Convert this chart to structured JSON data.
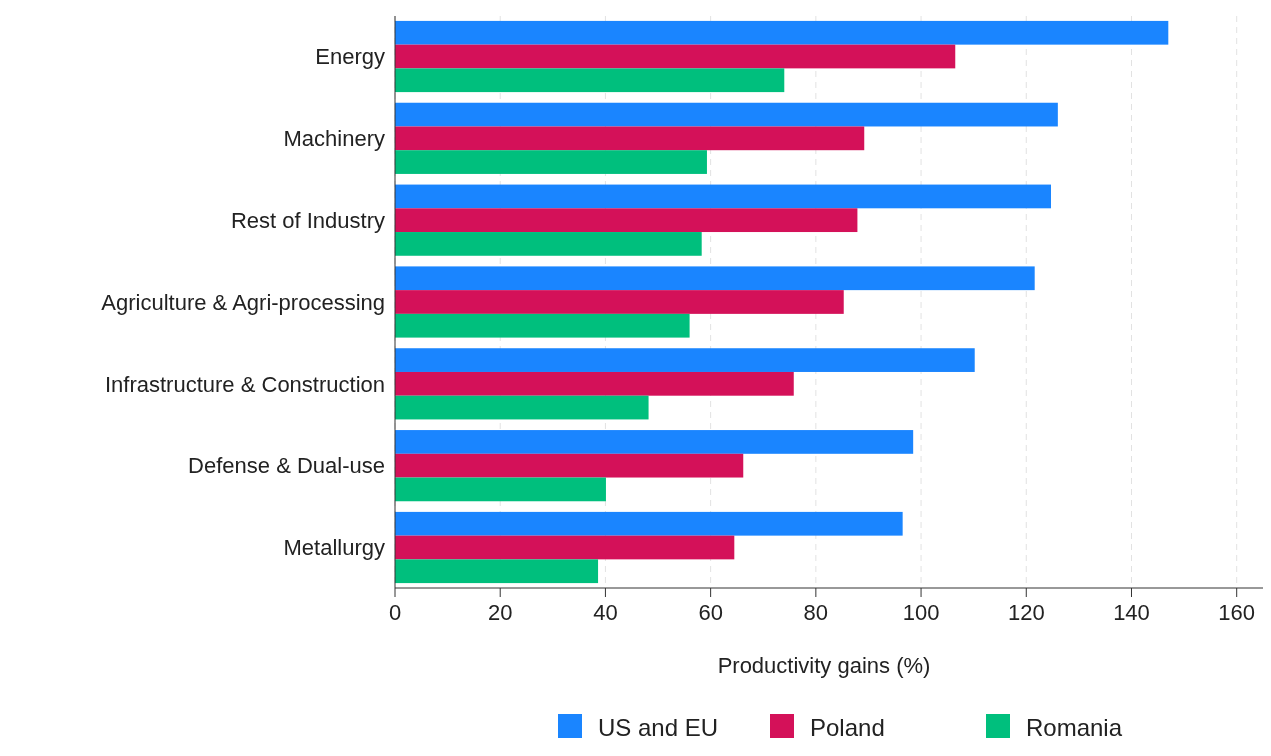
{
  "chart_data": {
    "type": "bar",
    "orientation": "horizontal",
    "xlabel": "Productivity gains (%)",
    "categories": [
      "Energy",
      "Machinery",
      "Rest of Industry",
      "Agriculture & Agri-processing",
      "Infrastructure & Construction",
      "Defense & Dual-use",
      "Metallurgy"
    ],
    "series": [
      {
        "name": "US and EU",
        "color": "#1a85ff",
        "values": [
          147,
          126,
          124.7,
          121.6,
          110.2,
          98.5,
          96.5
        ]
      },
      {
        "name": "Poland",
        "color": "#d41159",
        "values": [
          106.5,
          89.2,
          87.9,
          85.3,
          75.8,
          66.2,
          64.5
        ]
      },
      {
        "name": "Romania",
        "color": "#00bf7d",
        "values": [
          74,
          59.3,
          58.3,
          56,
          48.2,
          40.1,
          38.6
        ]
      }
    ],
    "xlim": [
      0,
      165
    ],
    "xticks": [
      0,
      20,
      40,
      60,
      80,
      100,
      120,
      140,
      160
    ],
    "grid": "x",
    "legend": "bottom"
  }
}
